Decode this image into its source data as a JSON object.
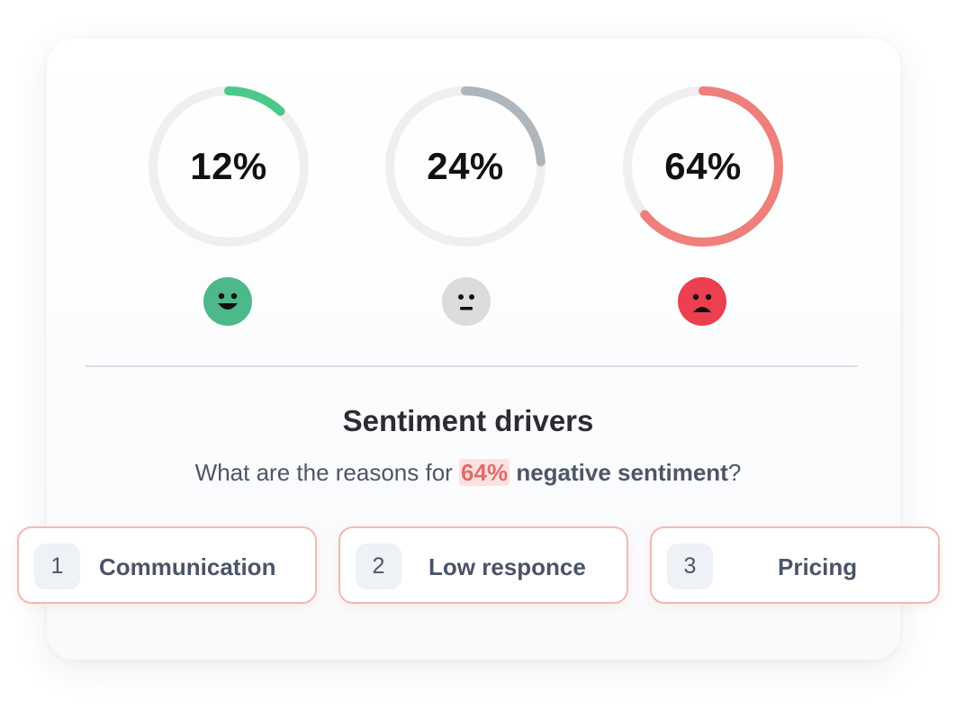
{
  "gauges": [
    {
      "value": 0.12,
      "label": "12%",
      "color": "#4cc98a",
      "face": "happy-face-icon",
      "face_color": "#4db889"
    },
    {
      "value": 0.24,
      "label": "24%",
      "color": "#aeb6bd",
      "face": "neutral-face-icon",
      "face_color": "#dcdcdc"
    },
    {
      "value": 0.64,
      "label": "64%",
      "color": "#ef7f7a",
      "face": "sad-face-icon",
      "face_color": "#ec4050"
    }
  ],
  "drivers": {
    "title": "Sentiment drivers",
    "question_prefix": "What are the reasons for ",
    "question_highlight": "64%",
    "question_bold": "negative sentiment",
    "question_suffix": "?",
    "items": [
      {
        "number": "1",
        "label": "Communication"
      },
      {
        "number": "2",
        "label": "Low responce"
      },
      {
        "number": "3",
        "label": "Pricing"
      }
    ]
  },
  "colors": {
    "track": "#efefef",
    "accent_negative": "#e26b6b",
    "card_border": "#f4b8b2"
  }
}
